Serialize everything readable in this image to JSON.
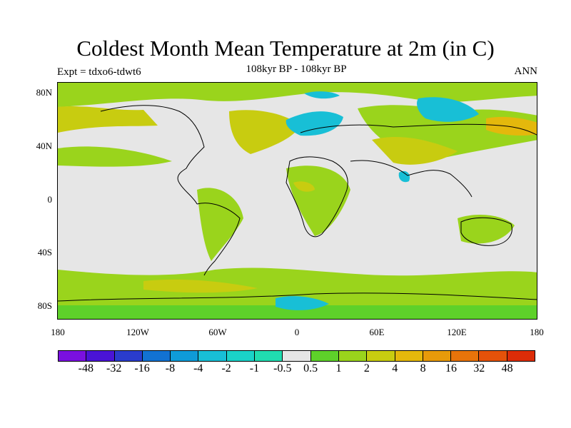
{
  "title": "Coldest Month Mean Temperature at 2m (in C)",
  "subtitle": "108kyr BP - 108kyr BP",
  "experiment": "Expt = tdxo6-tdwt6",
  "season": "ANN",
  "lat_labels": [
    "80N",
    "40N",
    "0",
    "40S",
    "80S"
  ],
  "lon_labels": [
    "180",
    "120W",
    "60W",
    "0",
    "60E",
    "120E",
    "180"
  ],
  "colorbar": {
    "labels": [
      "-48",
      "-32",
      "-16",
      "-8",
      "-4",
      "-2",
      "-1",
      "-0.5",
      "0.5",
      "1",
      "2",
      "4",
      "8",
      "16",
      "32",
      "48"
    ],
    "colors": [
      "#7a10e0",
      "#4a14d6",
      "#2a3ccc",
      "#1272d2",
      "#0f9bd8",
      "#18bfd6",
      "#1ad2c8",
      "#20dcb0",
      "#e6e6e6",
      "#5ed12a",
      "#9ad41c",
      "#c8cc10",
      "#e4b80c",
      "#e89a0a",
      "#e8740a",
      "#e4520a",
      "#dc2c08"
    ]
  },
  "colors": {
    "land_outline": "#000000",
    "background": "#e6e6e6"
  }
}
